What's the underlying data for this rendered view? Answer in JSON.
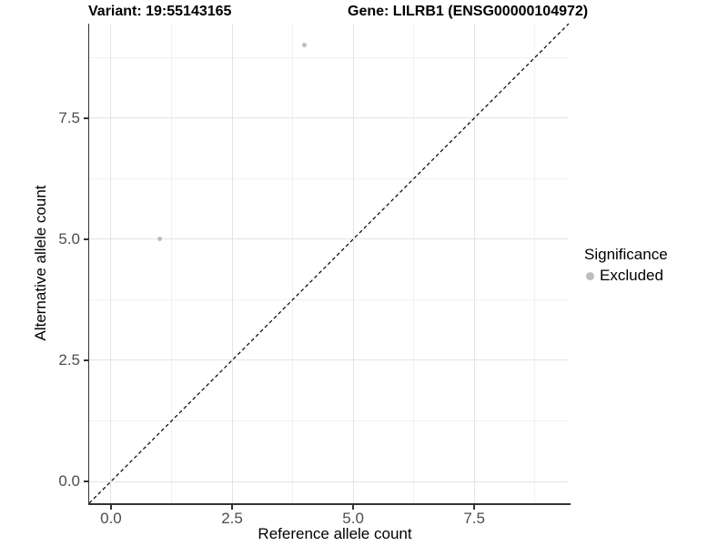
{
  "title": {
    "variant": "Variant: 19:55143165",
    "gene": "Gene: LILRB1 (ENSG00000104972)"
  },
  "axes": {
    "x": {
      "label": "Reference allele count",
      "ticks": [
        "0.0",
        "2.5",
        "5.0",
        "7.5"
      ]
    },
    "y": {
      "label": "Alternative allele count",
      "ticks": [
        "0.0",
        "2.5",
        "5.0",
        "7.5"
      ]
    }
  },
  "legend": {
    "title": "Significance",
    "items": [
      {
        "label": "Excluded",
        "color": "#bebebe"
      }
    ]
  },
  "colors": {
    "point": "#bebebe",
    "reference_line": "#000000",
    "axis_line": "#333333",
    "tick_label": "#4d4d4d",
    "grid_major": "#e4e4e4",
    "grid_minor": "#f1f1f1"
  },
  "chart_data": {
    "type": "scatter",
    "title": "Variant: 19:55143165    Gene: LILRB1 (ENSG00000104972)",
    "xlabel": "Reference allele count",
    "ylabel": "Alternative allele count",
    "xlim": [
      -0.45,
      9.45
    ],
    "ylim": [
      -0.45,
      9.45
    ],
    "xticks": [
      0,
      2.5,
      5,
      7.5
    ],
    "yticks": [
      0,
      2.5,
      5,
      7.5
    ],
    "grid": "major+minor",
    "legend_position": "right",
    "series": [
      {
        "name": "Excluded",
        "color": "#bebebe",
        "points": [
          {
            "x": 4,
            "y": 9
          },
          {
            "x": 1,
            "y": 5
          }
        ]
      }
    ],
    "reference_line": {
      "type": "identity y=x",
      "style": "dashed",
      "color": "#000000"
    }
  }
}
